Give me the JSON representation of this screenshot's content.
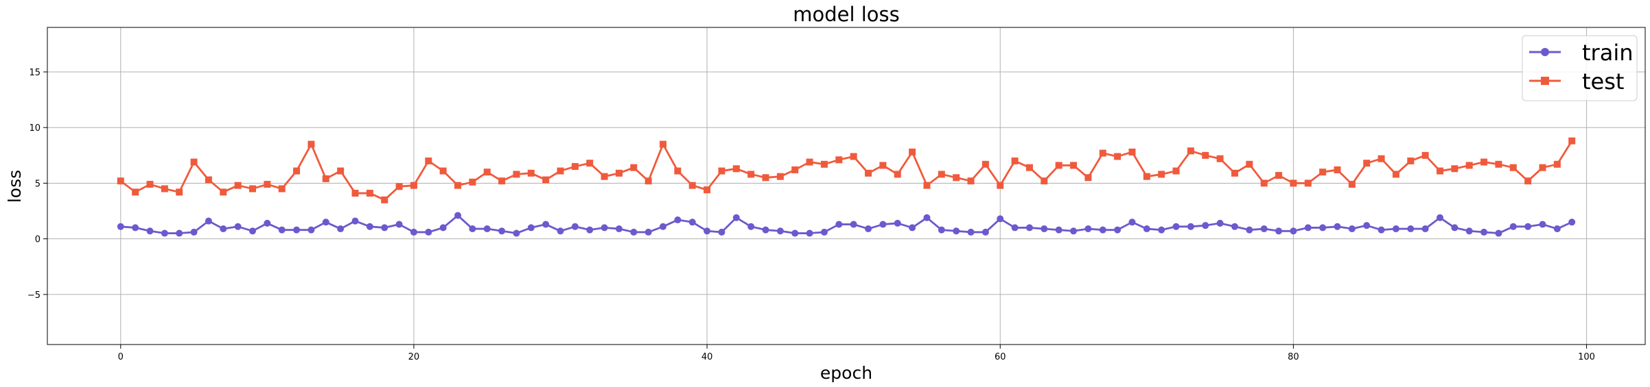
{
  "chart_data": {
    "type": "line",
    "title": "model loss",
    "xlabel": "epoch",
    "ylabel": "loss",
    "xlim": [
      -5,
      104
    ],
    "ylim": [
      -9.5,
      19
    ],
    "xticks": [
      0,
      20,
      40,
      60,
      80,
      100
    ],
    "xtick_labels": [
      "0",
      "20",
      "40",
      "60",
      "80",
      "100"
    ],
    "yticks": [
      -5,
      0,
      5,
      10,
      15
    ],
    "ytick_labels": [
      "−5",
      "0",
      "5",
      "10",
      "15"
    ],
    "grid": true,
    "legend_position": "top-right",
    "series": [
      {
        "name": "train",
        "color": "#6a5acd",
        "marker": "circle",
        "values": [
          1.1,
          1.0,
          0.7,
          0.5,
          0.5,
          0.6,
          1.6,
          0.9,
          1.1,
          0.7,
          1.4,
          0.8,
          0.8,
          0.8,
          1.5,
          0.9,
          1.6,
          1.1,
          1.0,
          1.3,
          0.6,
          0.6,
          1.0,
          2.1,
          0.9,
          0.9,
          0.7,
          0.5,
          1.0,
          1.3,
          0.7,
          1.1,
          0.8,
          1.0,
          0.9,
          0.6,
          0.6,
          1.1,
          1.7,
          1.5,
          0.7,
          0.6,
          1.9,
          1.1,
          0.8,
          0.7,
          0.5,
          0.5,
          0.6,
          1.3,
          1.3,
          0.9,
          1.3,
          1.4,
          1.0,
          1.9,
          0.8,
          0.7,
          0.6,
          0.6,
          1.8,
          1.0,
          1.0,
          0.9,
          0.8,
          0.7,
          0.9,
          0.8,
          0.8,
          1.5,
          0.9,
          0.8,
          1.1,
          1.1,
          1.2,
          1.4,
          1.1,
          0.8,
          0.9,
          0.7,
          0.7,
          1.0,
          1.0,
          1.1,
          0.9,
          1.2,
          0.8,
          0.9,
          0.9,
          0.9,
          1.9,
          1.0,
          0.7,
          0.6,
          0.5,
          1.1,
          1.1,
          1.3,
          0.9,
          1.5
        ]
      },
      {
        "name": "test",
        "color": "#f05a3c",
        "marker": "square",
        "values": [
          5.2,
          4.2,
          4.9,
          4.5,
          4.2,
          6.9,
          5.3,
          4.2,
          4.8,
          4.5,
          4.9,
          4.5,
          6.1,
          8.5,
          5.4,
          6.1,
          4.1,
          4.1,
          3.5,
          4.7,
          4.8,
          7.0,
          6.1,
          4.8,
          5.1,
          6.0,
          5.2,
          5.8,
          5.9,
          5.3,
          6.1,
          6.5,
          6.8,
          5.6,
          5.9,
          6.4,
          5.2,
          8.5,
          6.1,
          4.8,
          4.4,
          6.1,
          6.3,
          5.8,
          5.5,
          5.6,
          6.2,
          6.9,
          6.7,
          7.1,
          7.4,
          5.9,
          6.6,
          5.8,
          7.8,
          4.8,
          5.8,
          5.5,
          5.2,
          6.7,
          4.8,
          7.0,
          6.4,
          5.2,
          6.6,
          6.6,
          5.5,
          7.7,
          7.4,
          7.8,
          5.6,
          5.8,
          6.1,
          7.9,
          7.5,
          7.2,
          5.9,
          6.7,
          5.0,
          5.7,
          5.0,
          5.0,
          6.0,
          6.2,
          4.9,
          6.8,
          7.2,
          5.8,
          7.0,
          7.5,
          6.1,
          6.3,
          6.6,
          6.9,
          6.7,
          6.4,
          5.2,
          6.4,
          6.7,
          8.8
        ]
      }
    ]
  }
}
